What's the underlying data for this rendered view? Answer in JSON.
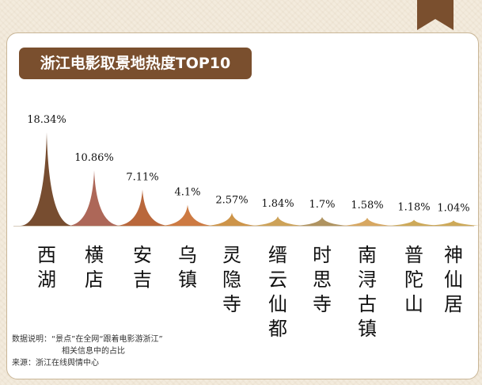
{
  "title": "浙江电影取景地热度TOP10",
  "chart_data": {
    "type": "bar",
    "categories": [
      "西湖",
      "横店",
      "安吉",
      "乌镇",
      "灵隐寺",
      "缙云仙都",
      "时思寺",
      "南浔古镇",
      "普陀山",
      "神仙居"
    ],
    "values": [
      18.34,
      10.86,
      7.11,
      4.1,
      2.57,
      1.84,
      1.7,
      1.58,
      1.18,
      1.04
    ],
    "value_labels": [
      "18.34%",
      "10.86%",
      "7.11%",
      "4.1%",
      "2.57%",
      "1.84%",
      "1.7%",
      "1.58%",
      "1.18%",
      "1.04%"
    ],
    "colors": [
      "#6b3e1e",
      "#a65a4a",
      "#b35a2a",
      "#c96f32",
      "#c98b3a",
      "#c99a4a",
      "#a88a52",
      "#d4a054",
      "#c9a24a",
      "#c9a24a"
    ]
  },
  "notes": {
    "line1": "数据说明：“景点”在全网“跟着电影游浙江”",
    "line2": "相关信息中的占比",
    "source": "来源：浙江在线舆情中心"
  }
}
